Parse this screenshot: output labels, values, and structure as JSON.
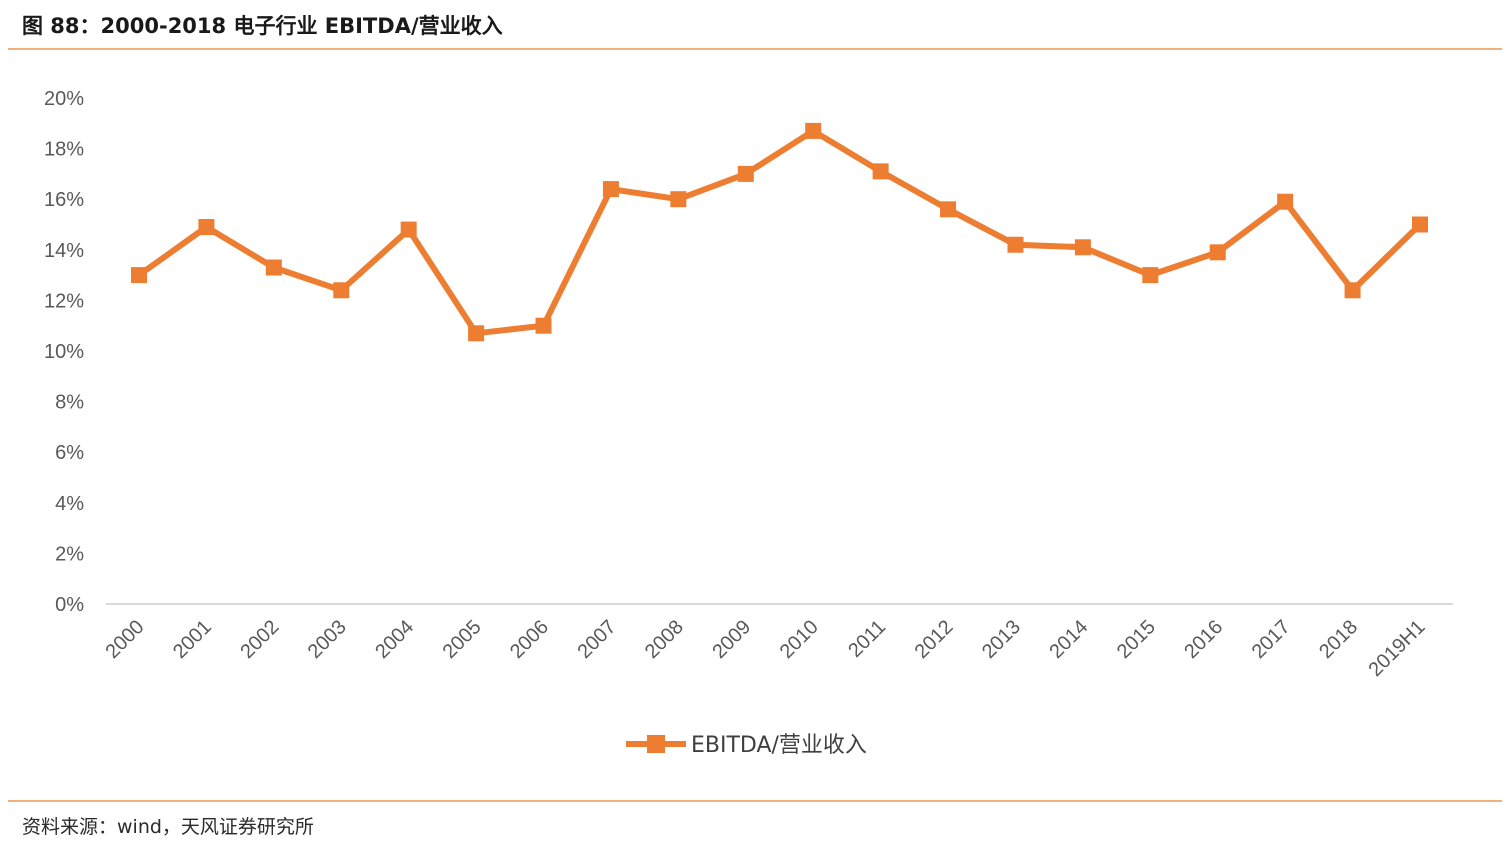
{
  "header": {
    "title": "图 88：2000-2018 电子行业 EBITDA/营业收入"
  },
  "footer": {
    "source": "资料来源：wind，天风证券研究所"
  },
  "colors": {
    "series": "#ed7d31",
    "rule": "#f0b077",
    "axis": "#d9d9d9",
    "text": "#595959"
  },
  "chart_data": {
    "type": "line",
    "title": "",
    "xlabel": "",
    "ylabel": "",
    "categories": [
      "2000",
      "2001",
      "2002",
      "2003",
      "2004",
      "2005",
      "2006",
      "2007",
      "2008",
      "2009",
      "2010",
      "2011",
      "2012",
      "2013",
      "2014",
      "2015",
      "2016",
      "2017",
      "2018",
      "2019H1"
    ],
    "series": [
      {
        "name": "EBITDA/营业收入",
        "values": [
          13.0,
          14.9,
          13.3,
          12.4,
          14.8,
          10.7,
          11.0,
          16.4,
          16.0,
          17.0,
          18.7,
          17.1,
          15.6,
          14.2,
          14.1,
          13.0,
          13.9,
          15.9,
          12.4,
          15.0
        ]
      }
    ],
    "ylim": [
      0,
      20
    ],
    "yticks": [
      "0%",
      "2%",
      "4%",
      "6%",
      "8%",
      "10%",
      "12%",
      "14%",
      "16%",
      "18%",
      "20%"
    ],
    "grid": false,
    "legend": "bottom",
    "marker": "square"
  }
}
